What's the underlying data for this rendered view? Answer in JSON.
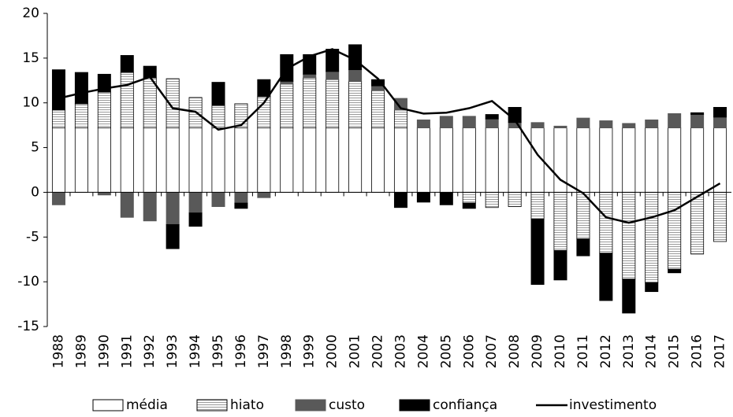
{
  "chart_data": {
    "type": "bar",
    "stacked": "diverging",
    "categories": [
      "1988",
      "1989",
      "1990",
      "1991",
      "1992",
      "1993",
      "1994",
      "1995",
      "1996",
      "1997",
      "1998",
      "1999",
      "2000",
      "2001",
      "2002",
      "2003",
      "2004",
      "2005",
      "2006",
      "2007",
      "2008",
      "2009",
      "2010",
      "2011",
      "2012",
      "2013",
      "2014",
      "2015",
      "2016",
      "2017"
    ],
    "series": [
      {
        "name": "média",
        "type": "bar",
        "color": "#ffffff",
        "values": [
          7.2,
          7.2,
          7.2,
          7.2,
          7.2,
          7.2,
          7.2,
          7.2,
          7.2,
          7.2,
          7.2,
          7.2,
          7.2,
          7.2,
          7.2,
          7.2,
          7.2,
          7.2,
          7.2,
          7.2,
          7.2,
          7.2,
          7.2,
          7.2,
          7.2,
          7.2,
          7.2,
          7.2,
          7.2,
          7.2
        ]
      },
      {
        "name": "hiato",
        "type": "bar",
        "color": "#9a9a9a",
        "pattern": "horizontal-stripes",
        "values": [
          2.0,
          2.7,
          4.0,
          6.2,
          5.6,
          5.5,
          3.4,
          2.5,
          2.7,
          3.5,
          4.9,
          5.6,
          5.4,
          5.2,
          4.2,
          2.0,
          0,
          0,
          -1.2,
          -1.7,
          -1.6,
          -3.0,
          -6.5,
          -5.2,
          -6.8,
          -9.7,
          -10.1,
          -8.6,
          -6.9,
          -5.5
        ]
      },
      {
        "name": "custo",
        "type": "bar",
        "color": "#595959",
        "values": [
          -1.4,
          0,
          -0.3,
          -2.8,
          -3.2,
          -3.6,
          -2.3,
          -1.6,
          -1.2,
          -0.6,
          0.3,
          0.4,
          0.9,
          1.3,
          0.5,
          1.3,
          0.9,
          1.3,
          1.3,
          1.0,
          0.6,
          0.6,
          0.2,
          1.1,
          0.8,
          0.5,
          0.9,
          1.6,
          1.5,
          1.2
        ]
      },
      {
        "name": "confiança",
        "type": "bar",
        "color": "#000000",
        "values": [
          4.5,
          3.5,
          2.0,
          1.9,
          1.3,
          -2.7,
          -1.5,
          2.6,
          -0.6,
          1.9,
          3.0,
          2.2,
          2.5,
          2.8,
          0.7,
          -1.7,
          -1.1,
          -1.4,
          -0.6,
          0.5,
          1.7,
          -7.3,
          -3.3,
          -1.9,
          -5.3,
          -3.8,
          -1.0,
          -0.4,
          0.2,
          1.1
        ]
      },
      {
        "name": "investimento",
        "type": "line",
        "color": "#000000",
        "values": [
          10.5,
          11.1,
          11.6,
          12.0,
          12.9,
          9.4,
          9.0,
          7.0,
          7.5,
          10.0,
          13.8,
          15.2,
          16.0,
          14.8,
          12.7,
          9.4,
          8.8,
          8.9,
          9.4,
          10.2,
          8.1,
          4.2,
          1.4,
          -0.1,
          -2.8,
          -3.4,
          -2.8,
          -2.0,
          -0.5,
          1.0
        ]
      }
    ],
    "ylim": [
      -15,
      20
    ],
    "yticks": [
      -15,
      -10,
      -5,
      0,
      5,
      10,
      15,
      20
    ],
    "grid": false,
    "legend": "bottom"
  }
}
